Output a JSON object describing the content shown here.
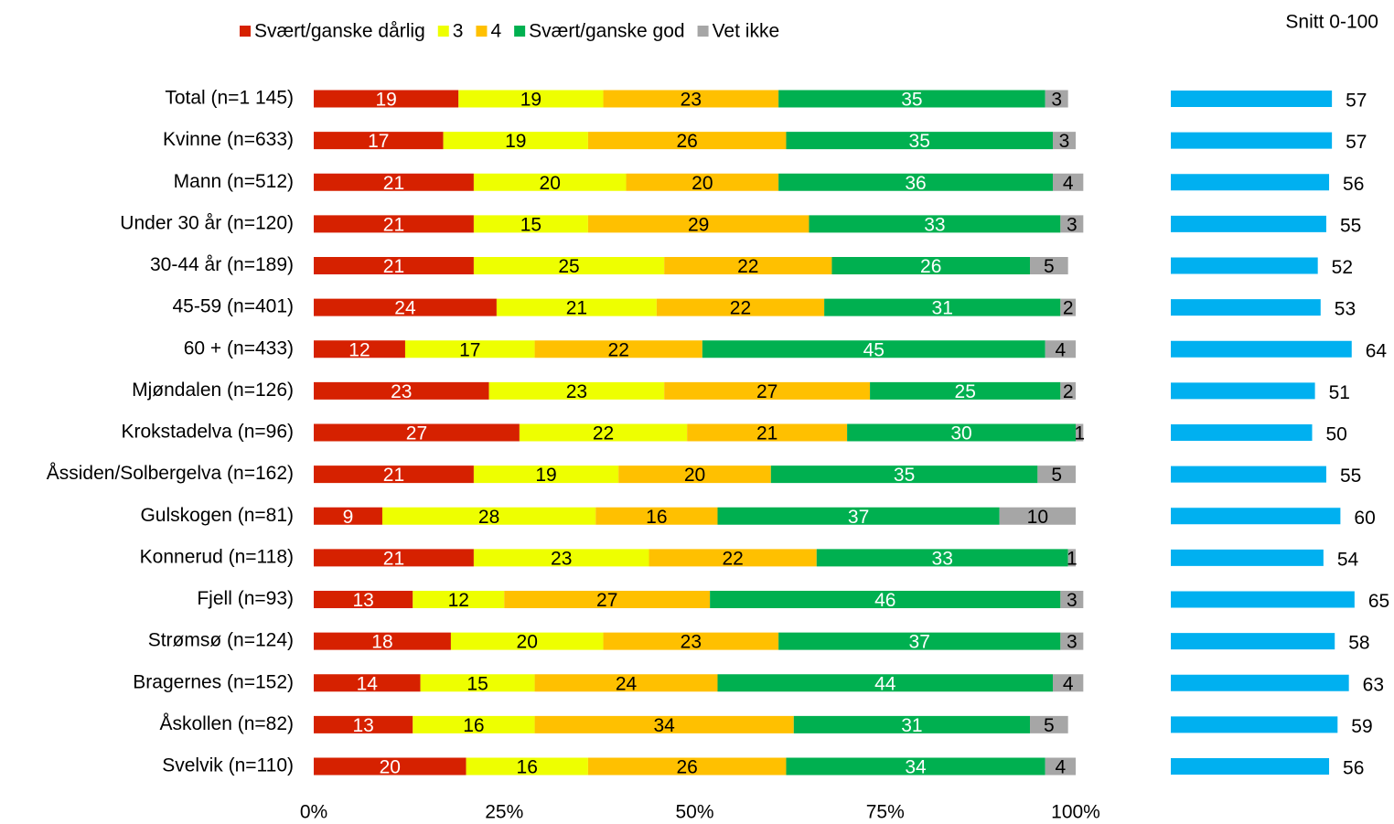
{
  "chart_data": [
    {
      "type": "stacked_barh",
      "categories": [
        "Total (n=1 145)",
        "Kvinne (n=633)",
        "Mann (n=512)",
        "Under 30 år (n=120)",
        "30-44 år (n=189)",
        "45-59 (n=401)",
        "60 + (n=433)",
        "Mjøndalen (n=126)",
        "Krokstadelva (n=96)",
        "Åssiden/Solbergelva (n=162)",
        "Gulskogen (n=81)",
        "Konnerud (n=118)",
        "Fjell (n=93)",
        "Strømsø (n=124)",
        "Bragernes (n=152)",
        "Åskollen (n=82)",
        "Svelvik (n=110)"
      ],
      "series": [
        {
          "name": "Svært/ganske dårlig",
          "color": "#d62100",
          "text_color": "#ffffff",
          "values": [
            19,
            17,
            21,
            21,
            21,
            24,
            12,
            23,
            27,
            21,
            9,
            21,
            13,
            18,
            14,
            13,
            20
          ]
        },
        {
          "name": "3",
          "color": "#eeff00",
          "text_color": "#000000",
          "values": [
            19,
            19,
            20,
            15,
            25,
            21,
            17,
            23,
            22,
            19,
            28,
            23,
            12,
            20,
            15,
            16,
            16
          ]
        },
        {
          "name": "4",
          "color": "#ffc000",
          "text_color": "#000000",
          "values": [
            23,
            26,
            20,
            29,
            22,
            22,
            22,
            27,
            21,
            20,
            16,
            22,
            27,
            23,
            24,
            34,
            26
          ]
        },
        {
          "name": "Svært/ganske god",
          "color": "#00b050",
          "text_color": "#ffffff",
          "values": [
            35,
            35,
            36,
            33,
            26,
            31,
            45,
            25,
            30,
            35,
            37,
            33,
            46,
            37,
            44,
            31,
            34
          ]
        },
        {
          "name": "Vet ikke",
          "color": "#a6a6a6",
          "text_color": "#000000",
          "values": [
            3,
            3,
            4,
            3,
            5,
            2,
            4,
            2,
            1,
            5,
            10,
            1,
            3,
            3,
            4,
            5,
            4
          ]
        }
      ],
      "xlim": [
        0,
        100
      ],
      "xticks": [
        {
          "value": 0,
          "label": "0%"
        },
        {
          "value": 25,
          "label": "25%"
        },
        {
          "value": 50,
          "label": "50%"
        },
        {
          "value": 75,
          "label": "75%"
        },
        {
          "value": 100,
          "label": "100%"
        }
      ],
      "legend": "top"
    },
    {
      "type": "barh",
      "title": "Snitt 0-100",
      "values": [
        57,
        57,
        56,
        55,
        52,
        53,
        64,
        51,
        50,
        55,
        60,
        54,
        65,
        58,
        63,
        59,
        56
      ],
      "color": "#00b0f0",
      "xlim": [
        0,
        100
      ]
    }
  ]
}
